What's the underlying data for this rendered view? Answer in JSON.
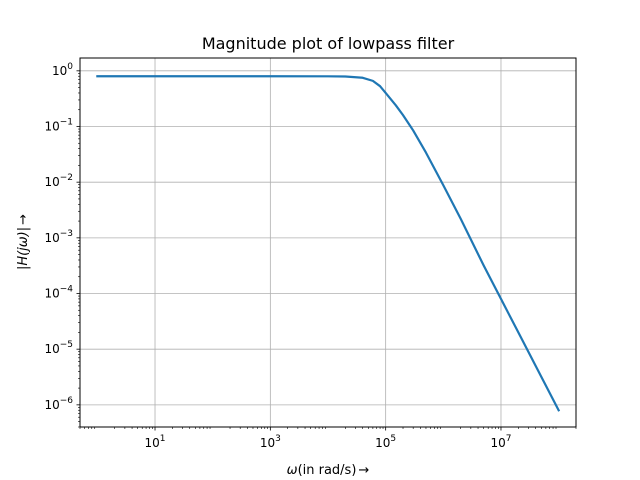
{
  "chart_data": {
    "type": "line",
    "title": "Magnitude plot of lowpass filter",
    "xlabel_var": "ω",
    "xlabel_rest": "(in rad/s)",
    "ylabel_text": "|H(jω)|",
    "arrow": "→",
    "xscale": "log",
    "yscale": "log",
    "xlim": [
      0.5,
      200000000
    ],
    "ylim": [
      4e-07,
      1.7
    ],
    "grid": true,
    "xticks": [
      {
        "value": 10,
        "base": "10",
        "exp": "1"
      },
      {
        "value": 1000,
        "base": "10",
        "exp": "3"
      },
      {
        "value": 100000,
        "base": "10",
        "exp": "5"
      },
      {
        "value": 10000000,
        "base": "10",
        "exp": "7"
      }
    ],
    "yticks": [
      {
        "value": 1,
        "base": "10",
        "exp": "0"
      },
      {
        "value": 0.1,
        "base": "10",
        "exp": "−1"
      },
      {
        "value": 0.01,
        "base": "10",
        "exp": "−2"
      },
      {
        "value": 0.001,
        "base": "10",
        "exp": "−3"
      },
      {
        "value": 0.0001,
        "base": "10",
        "exp": "−4"
      },
      {
        "value": 1e-05,
        "base": "10",
        "exp": "−5"
      },
      {
        "value": 1e-06,
        "base": "10",
        "exp": "−6"
      }
    ],
    "series": [
      {
        "color": "#1f77b4",
        "x": [
          1,
          10,
          100,
          1000,
          10000,
          20000,
          40000,
          60000,
          80000,
          100000,
          150000,
          200000,
          300000,
          500000,
          1000000,
          2000000,
          5000000,
          10000000,
          20000000,
          50000000,
          100000000
        ],
        "y": [
          0.8,
          0.8,
          0.8,
          0.8,
          0.797,
          0.79,
          0.75,
          0.66,
          0.53,
          0.4,
          0.24,
          0.16,
          0.085,
          0.034,
          0.0088,
          0.0022,
          0.00032,
          8e-05,
          2e-05,
          3.2e-06,
          8e-07
        ]
      }
    ]
  }
}
